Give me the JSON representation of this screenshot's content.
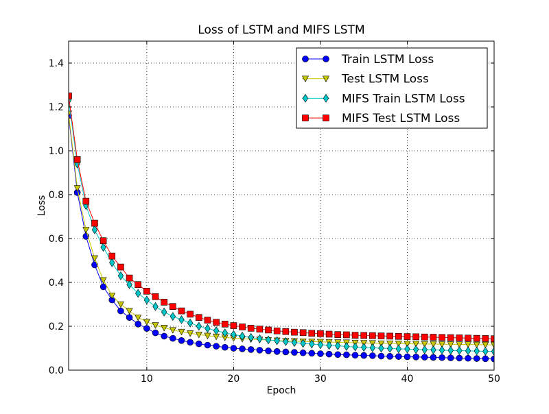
{
  "chart_data": {
    "type": "line",
    "title": "Loss of LSTM and MIFS LSTM",
    "xlabel": "Epoch",
    "ylabel": "Loss",
    "xlim": [
      1,
      50
    ],
    "ylim": [
      0.0,
      1.5
    ],
    "xticks": [
      10,
      20,
      30,
      40,
      50
    ],
    "yticks": [
      0.0,
      0.2,
      0.4,
      0.6,
      0.8,
      1.0,
      1.2,
      1.4
    ],
    "ytick_labels": [
      "0.0",
      "0.2",
      "0.4",
      "0.6",
      "0.8",
      "1.0",
      "1.2",
      "1.4"
    ],
    "grid": true,
    "legend_position": "upper-right",
    "x": [
      1,
      2,
      3,
      4,
      5,
      6,
      7,
      8,
      9,
      10,
      11,
      12,
      13,
      14,
      15,
      16,
      17,
      18,
      19,
      20,
      21,
      22,
      23,
      24,
      25,
      26,
      27,
      28,
      29,
      30,
      31,
      32,
      33,
      34,
      35,
      36,
      37,
      38,
      39,
      40,
      41,
      42,
      43,
      44,
      45,
      46,
      47,
      48,
      49,
      50
    ],
    "series": [
      {
        "name": "Train LSTM Loss",
        "color": "#0000ff",
        "marker": "circle",
        "values": [
          1.16,
          0.81,
          0.61,
          0.48,
          0.38,
          0.32,
          0.27,
          0.24,
          0.21,
          0.19,
          0.17,
          0.155,
          0.145,
          0.135,
          0.127,
          0.12,
          0.114,
          0.109,
          0.104,
          0.1,
          0.097,
          0.094,
          0.091,
          0.088,
          0.085,
          0.083,
          0.081,
          0.079,
          0.077,
          0.075,
          0.073,
          0.071,
          0.07,
          0.068,
          0.067,
          0.066,
          0.064,
          0.063,
          0.062,
          0.061,
          0.06,
          0.059,
          0.058,
          0.057,
          0.056,
          0.055,
          0.054,
          0.053,
          0.052,
          0.051
        ]
      },
      {
        "name": "Test LSTM Loss",
        "color": "#c8c800",
        "marker": "triangle-down",
        "values": [
          1.17,
          0.83,
          0.64,
          0.51,
          0.41,
          0.34,
          0.3,
          0.27,
          0.24,
          0.22,
          0.205,
          0.193,
          0.183,
          0.175,
          0.168,
          0.162,
          0.157,
          0.153,
          0.149,
          0.146,
          0.143,
          0.141,
          0.139,
          0.137,
          0.135,
          0.133,
          0.132,
          0.131,
          0.13,
          0.129,
          0.128,
          0.127,
          0.126,
          0.125,
          0.124,
          0.123,
          0.122,
          0.122,
          0.121,
          0.12,
          0.12,
          0.119,
          0.119,
          0.118,
          0.118,
          0.117,
          0.117,
          0.116,
          0.116,
          0.115
        ]
      },
      {
        "name": "MIFS Train LSTM Loss",
        "color": "#00c8c8",
        "marker": "diamond",
        "values": [
          1.23,
          0.94,
          0.75,
          0.64,
          0.56,
          0.49,
          0.43,
          0.39,
          0.35,
          0.32,
          0.29,
          0.265,
          0.245,
          0.23,
          0.215,
          0.2,
          0.19,
          0.18,
          0.17,
          0.162,
          0.155,
          0.149,
          0.143,
          0.138,
          0.134,
          0.13,
          0.126,
          0.122,
          0.119,
          0.116,
          0.113,
          0.111,
          0.108,
          0.106,
          0.104,
          0.102,
          0.1,
          0.099,
          0.097,
          0.096,
          0.094,
          0.093,
          0.092,
          0.091,
          0.09,
          0.089,
          0.088,
          0.087,
          0.086,
          0.085
        ]
      },
      {
        "name": "MIFS Test LSTM Loss",
        "color": "#ff0000",
        "marker": "square",
        "values": [
          1.25,
          0.96,
          0.77,
          0.67,
          0.59,
          0.52,
          0.47,
          0.42,
          0.39,
          0.36,
          0.335,
          0.31,
          0.29,
          0.27,
          0.255,
          0.24,
          0.228,
          0.218,
          0.21,
          0.203,
          0.197,
          0.191,
          0.187,
          0.183,
          0.179,
          0.176,
          0.173,
          0.171,
          0.168,
          0.166,
          0.164,
          0.162,
          0.161,
          0.159,
          0.158,
          0.157,
          0.156,
          0.155,
          0.154,
          0.153,
          0.152,
          0.151,
          0.15,
          0.149,
          0.148,
          0.147,
          0.146,
          0.145,
          0.144,
          0.143
        ]
      }
    ]
  }
}
